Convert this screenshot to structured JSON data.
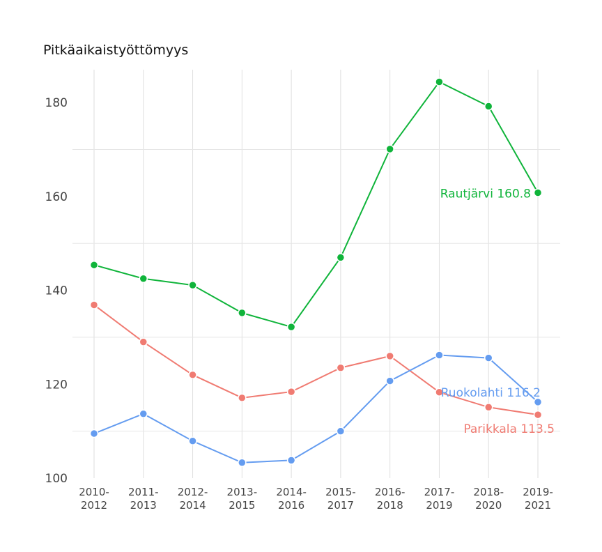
{
  "chart_data": {
    "type": "line",
    "title": "Pitkäaikaistyöttömyys",
    "xlabel": "",
    "ylabel": "",
    "categories": [
      [
        "2010-",
        "2012"
      ],
      [
        "2011-",
        "2013"
      ],
      [
        "2012-",
        "2014"
      ],
      [
        "2013-",
        "2015"
      ],
      [
        "2014-",
        "2016"
      ],
      [
        "2015-",
        "2017"
      ],
      [
        "2016-",
        "2018"
      ],
      [
        "2017-",
        "2019"
      ],
      [
        "2018-",
        "2020"
      ],
      [
        "2019-",
        "2021"
      ]
    ],
    "yticks": [
      "100",
      "120",
      "140",
      "160",
      "180"
    ],
    "ylim": [
      100,
      187
    ],
    "grid": true,
    "series": [
      {
        "name": "Rautjärvi",
        "color": "#0fb43a",
        "values": [
          145.4,
          142.5,
          141.1,
          135.2,
          132.2,
          147.0,
          170.1,
          184.4,
          179.2,
          160.8
        ],
        "end_label": "Rautjärvi 160.8"
      },
      {
        "name": "Parikkala",
        "color": "#f07b72",
        "values": [
          136.9,
          129.0,
          122.0,
          117.1,
          118.4,
          123.5,
          126.0,
          118.3,
          115.1,
          113.5
        ],
        "end_label": "Parikkala 113.5"
      },
      {
        "name": "Ruokolahti",
        "color": "#649cf0",
        "values": [
          109.5,
          113.7,
          107.9,
          103.3,
          103.8,
          110.0,
          120.7,
          126.2,
          125.6,
          116.2
        ],
        "end_label": "Ruokolahti 116.2"
      }
    ]
  }
}
